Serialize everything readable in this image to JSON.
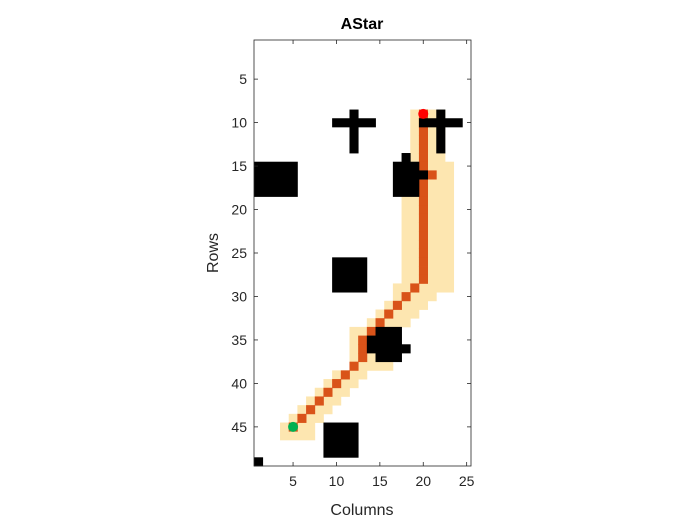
{
  "chart_data": {
    "type": "heatmap",
    "title": "AStar",
    "xlabel": "Columns",
    "ylabel": "Rows",
    "grid_columns": 25,
    "grid_rows": 49,
    "xlim": [
      0.5,
      25.5
    ],
    "ylim": [
      0.5,
      49.5
    ],
    "y_reversed": true,
    "xticks": [
      5,
      10,
      15,
      20,
      25
    ],
    "yticks": [
      5,
      10,
      15,
      20,
      25,
      30,
      35,
      40,
      45
    ],
    "grid": false,
    "colors": {
      "free": "#ffffff",
      "obstacle": "#000000",
      "explored": "#fde6b0",
      "path": "#d95319",
      "start": "#00b050",
      "goal": "#ff0000"
    },
    "obstacles": [
      {
        "rows": [
          9,
          13
        ],
        "cols": [
          12,
          12
        ]
      },
      {
        "rows": [
          10,
          10
        ],
        "cols": [
          10,
          14
        ]
      },
      {
        "rows": [
          9,
          13
        ],
        "cols": [
          22,
          22
        ]
      },
      {
        "rows": [
          10,
          10
        ],
        "cols": [
          20,
          24
        ]
      },
      {
        "rows": [
          15,
          18
        ],
        "cols": [
          1,
          5
        ]
      },
      {
        "rows": [
          15,
          18
        ],
        "cols": [
          17,
          19
        ]
      },
      {
        "rows": [
          14,
          14
        ],
        "cols": [
          18,
          18
        ]
      },
      {
        "rows": [
          16,
          16
        ],
        "cols": [
          20,
          20
        ]
      },
      {
        "rows": [
          26,
          29
        ],
        "cols": [
          10,
          13
        ]
      },
      {
        "rows": [
          34,
          37
        ],
        "cols": [
          15,
          17
        ]
      },
      {
        "rows": [
          35,
          36
        ],
        "cols": [
          14,
          14
        ]
      },
      {
        "rows": [
          36,
          36
        ],
        "cols": [
          18,
          18
        ]
      },
      {
        "rows": [
          45,
          48
        ],
        "cols": [
          9,
          12
        ]
      },
      {
        "rows": [
          49,
          49
        ],
        "cols": [
          1,
          1
        ]
      }
    ],
    "explored": [
      {
        "rows": [
          9,
          16
        ],
        "cols": [
          19,
          22
        ]
      },
      {
        "rows": [
          15,
          29
        ],
        "cols": [
          18,
          23
        ]
      },
      {
        "rows": [
          29,
          30
        ],
        "cols": [
          17,
          21
        ]
      },
      {
        "rows": [
          31,
          31
        ],
        "cols": [
          16,
          20
        ]
      },
      {
        "rows": [
          32,
          32
        ],
        "cols": [
          15,
          19
        ]
      },
      {
        "rows": [
          33,
          33
        ],
        "cols": [
          14,
          18
        ]
      },
      {
        "rows": [
          34,
          38
        ],
        "cols": [
          12,
          16
        ]
      },
      {
        "rows": [
          39,
          39
        ],
        "cols": [
          10,
          13
        ]
      },
      {
        "rows": [
          40,
          40
        ],
        "cols": [
          9,
          12
        ]
      },
      {
        "rows": [
          41,
          41
        ],
        "cols": [
          8,
          11
        ]
      },
      {
        "rows": [
          42,
          42
        ],
        "cols": [
          7,
          10
        ]
      },
      {
        "rows": [
          43,
          43
        ],
        "cols": [
          6,
          9
        ]
      },
      {
        "rows": [
          44,
          44
        ],
        "cols": [
          5,
          8
        ]
      },
      {
        "rows": [
          45,
          46
        ],
        "cols": [
          4,
          7
        ]
      }
    ],
    "path": [
      [
        20,
        9
      ],
      [
        20,
        10
      ],
      [
        20,
        11
      ],
      [
        20,
        12
      ],
      [
        20,
        13
      ],
      [
        20,
        14
      ],
      [
        20,
        15
      ],
      [
        21,
        16
      ],
      [
        20,
        17
      ],
      [
        20,
        18
      ],
      [
        20,
        19
      ],
      [
        20,
        20
      ],
      [
        20,
        21
      ],
      [
        20,
        22
      ],
      [
        20,
        23
      ],
      [
        20,
        24
      ],
      [
        20,
        25
      ],
      [
        20,
        26
      ],
      [
        20,
        27
      ],
      [
        20,
        28
      ],
      [
        19,
        29
      ],
      [
        18,
        30
      ],
      [
        17,
        31
      ],
      [
        16,
        32
      ],
      [
        15,
        33
      ],
      [
        14,
        34
      ],
      [
        13,
        35
      ],
      [
        13,
        36
      ],
      [
        13,
        37
      ],
      [
        12,
        38
      ],
      [
        11,
        39
      ],
      [
        10,
        40
      ],
      [
        9,
        41
      ],
      [
        8,
        42
      ],
      [
        7,
        43
      ],
      [
        6,
        44
      ],
      [
        5,
        45
      ]
    ],
    "start": {
      "col": 5,
      "row": 45
    },
    "goal": {
      "col": 20,
      "row": 9
    }
  }
}
